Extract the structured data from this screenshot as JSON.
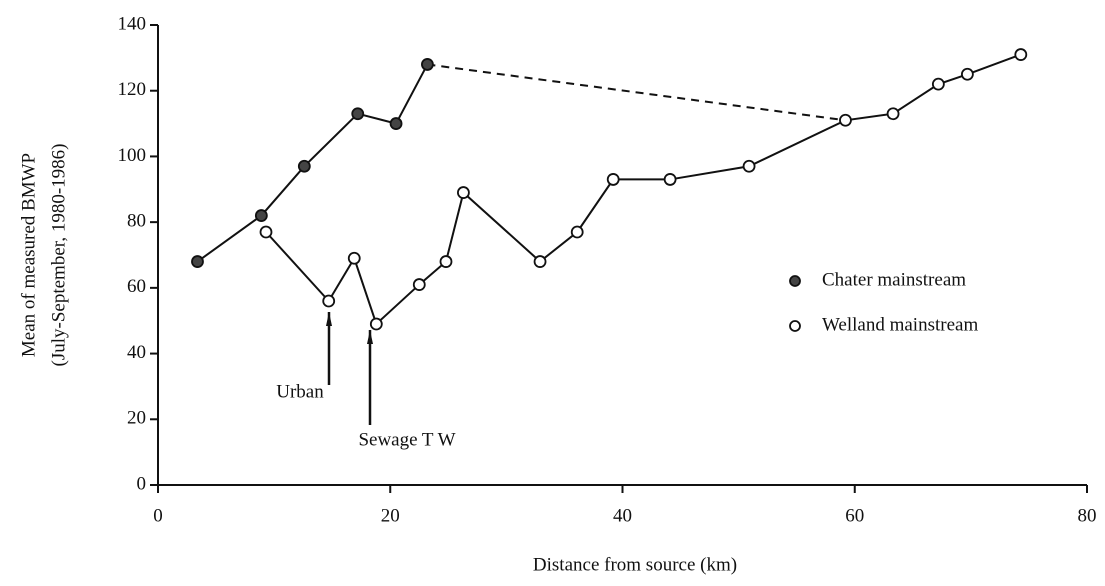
{
  "chart_data": {
    "type": "line",
    "xlabel": "Distance from source (km)",
    "ylabel": [
      "Mean of measured BMWP",
      "(July-September, 1980-1986)"
    ],
    "xlim": [
      0,
      80
    ],
    "xticks": [
      0,
      20,
      40,
      60,
      80
    ],
    "ylim": [
      0,
      140
    ],
    "yticks": [
      0,
      20,
      40,
      60,
      80,
      100,
      120,
      140
    ],
    "series": [
      {
        "name": "Chater mainstream",
        "color": "#444444",
        "x": [
          3.4,
          8.9,
          12.6,
          17.2,
          20.5,
          23.2
        ],
        "values": [
          68,
          82,
          97,
          113,
          110,
          128
        ]
      },
      {
        "name": "Welland mainstream",
        "color": "#ffffff",
        "x": [
          9.3,
          14.7,
          16.9,
          18.8,
          22.5,
          24.8,
          26.3,
          32.9,
          36.1,
          39.2,
          44.1,
          50.9,
          59.2,
          63.3,
          67.2,
          69.7,
          74.3
        ],
        "values": [
          77,
          56,
          69,
          49,
          61,
          68,
          89,
          68,
          77,
          93,
          93,
          97,
          111,
          113,
          122,
          125,
          131
        ]
      }
    ],
    "annotations": [
      "Urban",
      "Sewage T W"
    ]
  }
}
